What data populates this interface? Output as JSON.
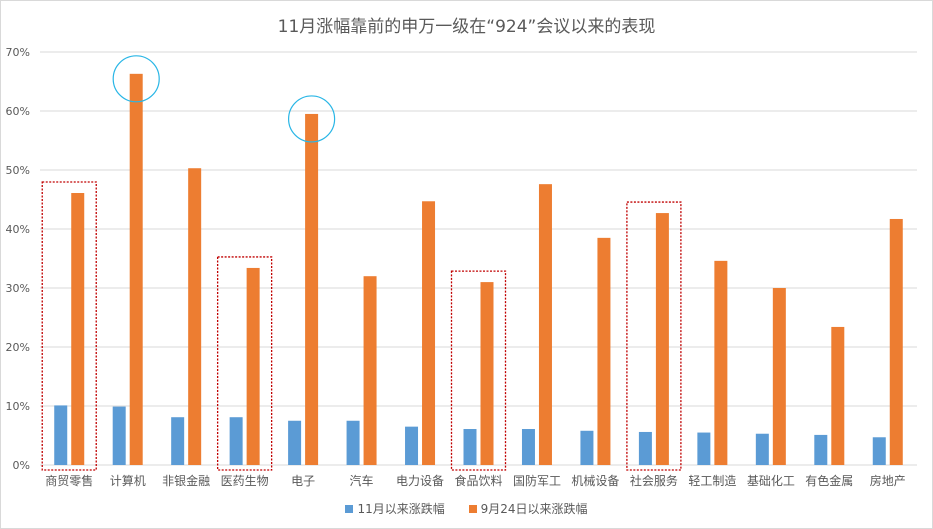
{
  "chart_data": {
    "type": "bar",
    "title": "11月涨幅靠前的申万一级在“924”会议以来的表现",
    "xlabel": "",
    "ylabel": "",
    "ylim": [
      0,
      70
    ],
    "yticks": [
      "0%",
      "10%",
      "20%",
      "30%",
      "40%",
      "50%",
      "60%",
      "70%"
    ],
    "grid": true,
    "legend_position": "bottom",
    "categories": [
      "商贸零售",
      "计算机",
      "非银金融",
      "医药生物",
      "电子",
      "汽车",
      "电力设备",
      "食品饮料",
      "国防军工",
      "机械设备",
      "社会服务",
      "轻工制造",
      "基础化工",
      "有色金属",
      "房地产"
    ],
    "series": [
      {
        "name": "11月以来涨跌幅",
        "color": "#5b9bd5",
        "values": [
          10.1,
          9.9,
          8.1,
          8.1,
          7.5,
          7.5,
          6.5,
          6.1,
          6.1,
          5.8,
          5.6,
          5.5,
          5.3,
          5.1,
          4.7
        ]
      },
      {
        "name": "9月24日以来涨跌幅",
        "color": "#ed7d31",
        "values": [
          46.1,
          66.3,
          50.3,
          33.4,
          59.5,
          32.0,
          44.7,
          31.0,
          47.6,
          38.5,
          42.7,
          34.6,
          30.0,
          23.4,
          41.7
        ]
      }
    ],
    "annotations": {
      "highlight_boxes": [
        "商贸零售",
        "医药生物",
        "食品饮料",
        "社会服务"
      ],
      "highlight_box_color": "#c00000",
      "circles": [
        "计算机",
        "电子"
      ],
      "circle_color": "#29b6e6"
    }
  }
}
